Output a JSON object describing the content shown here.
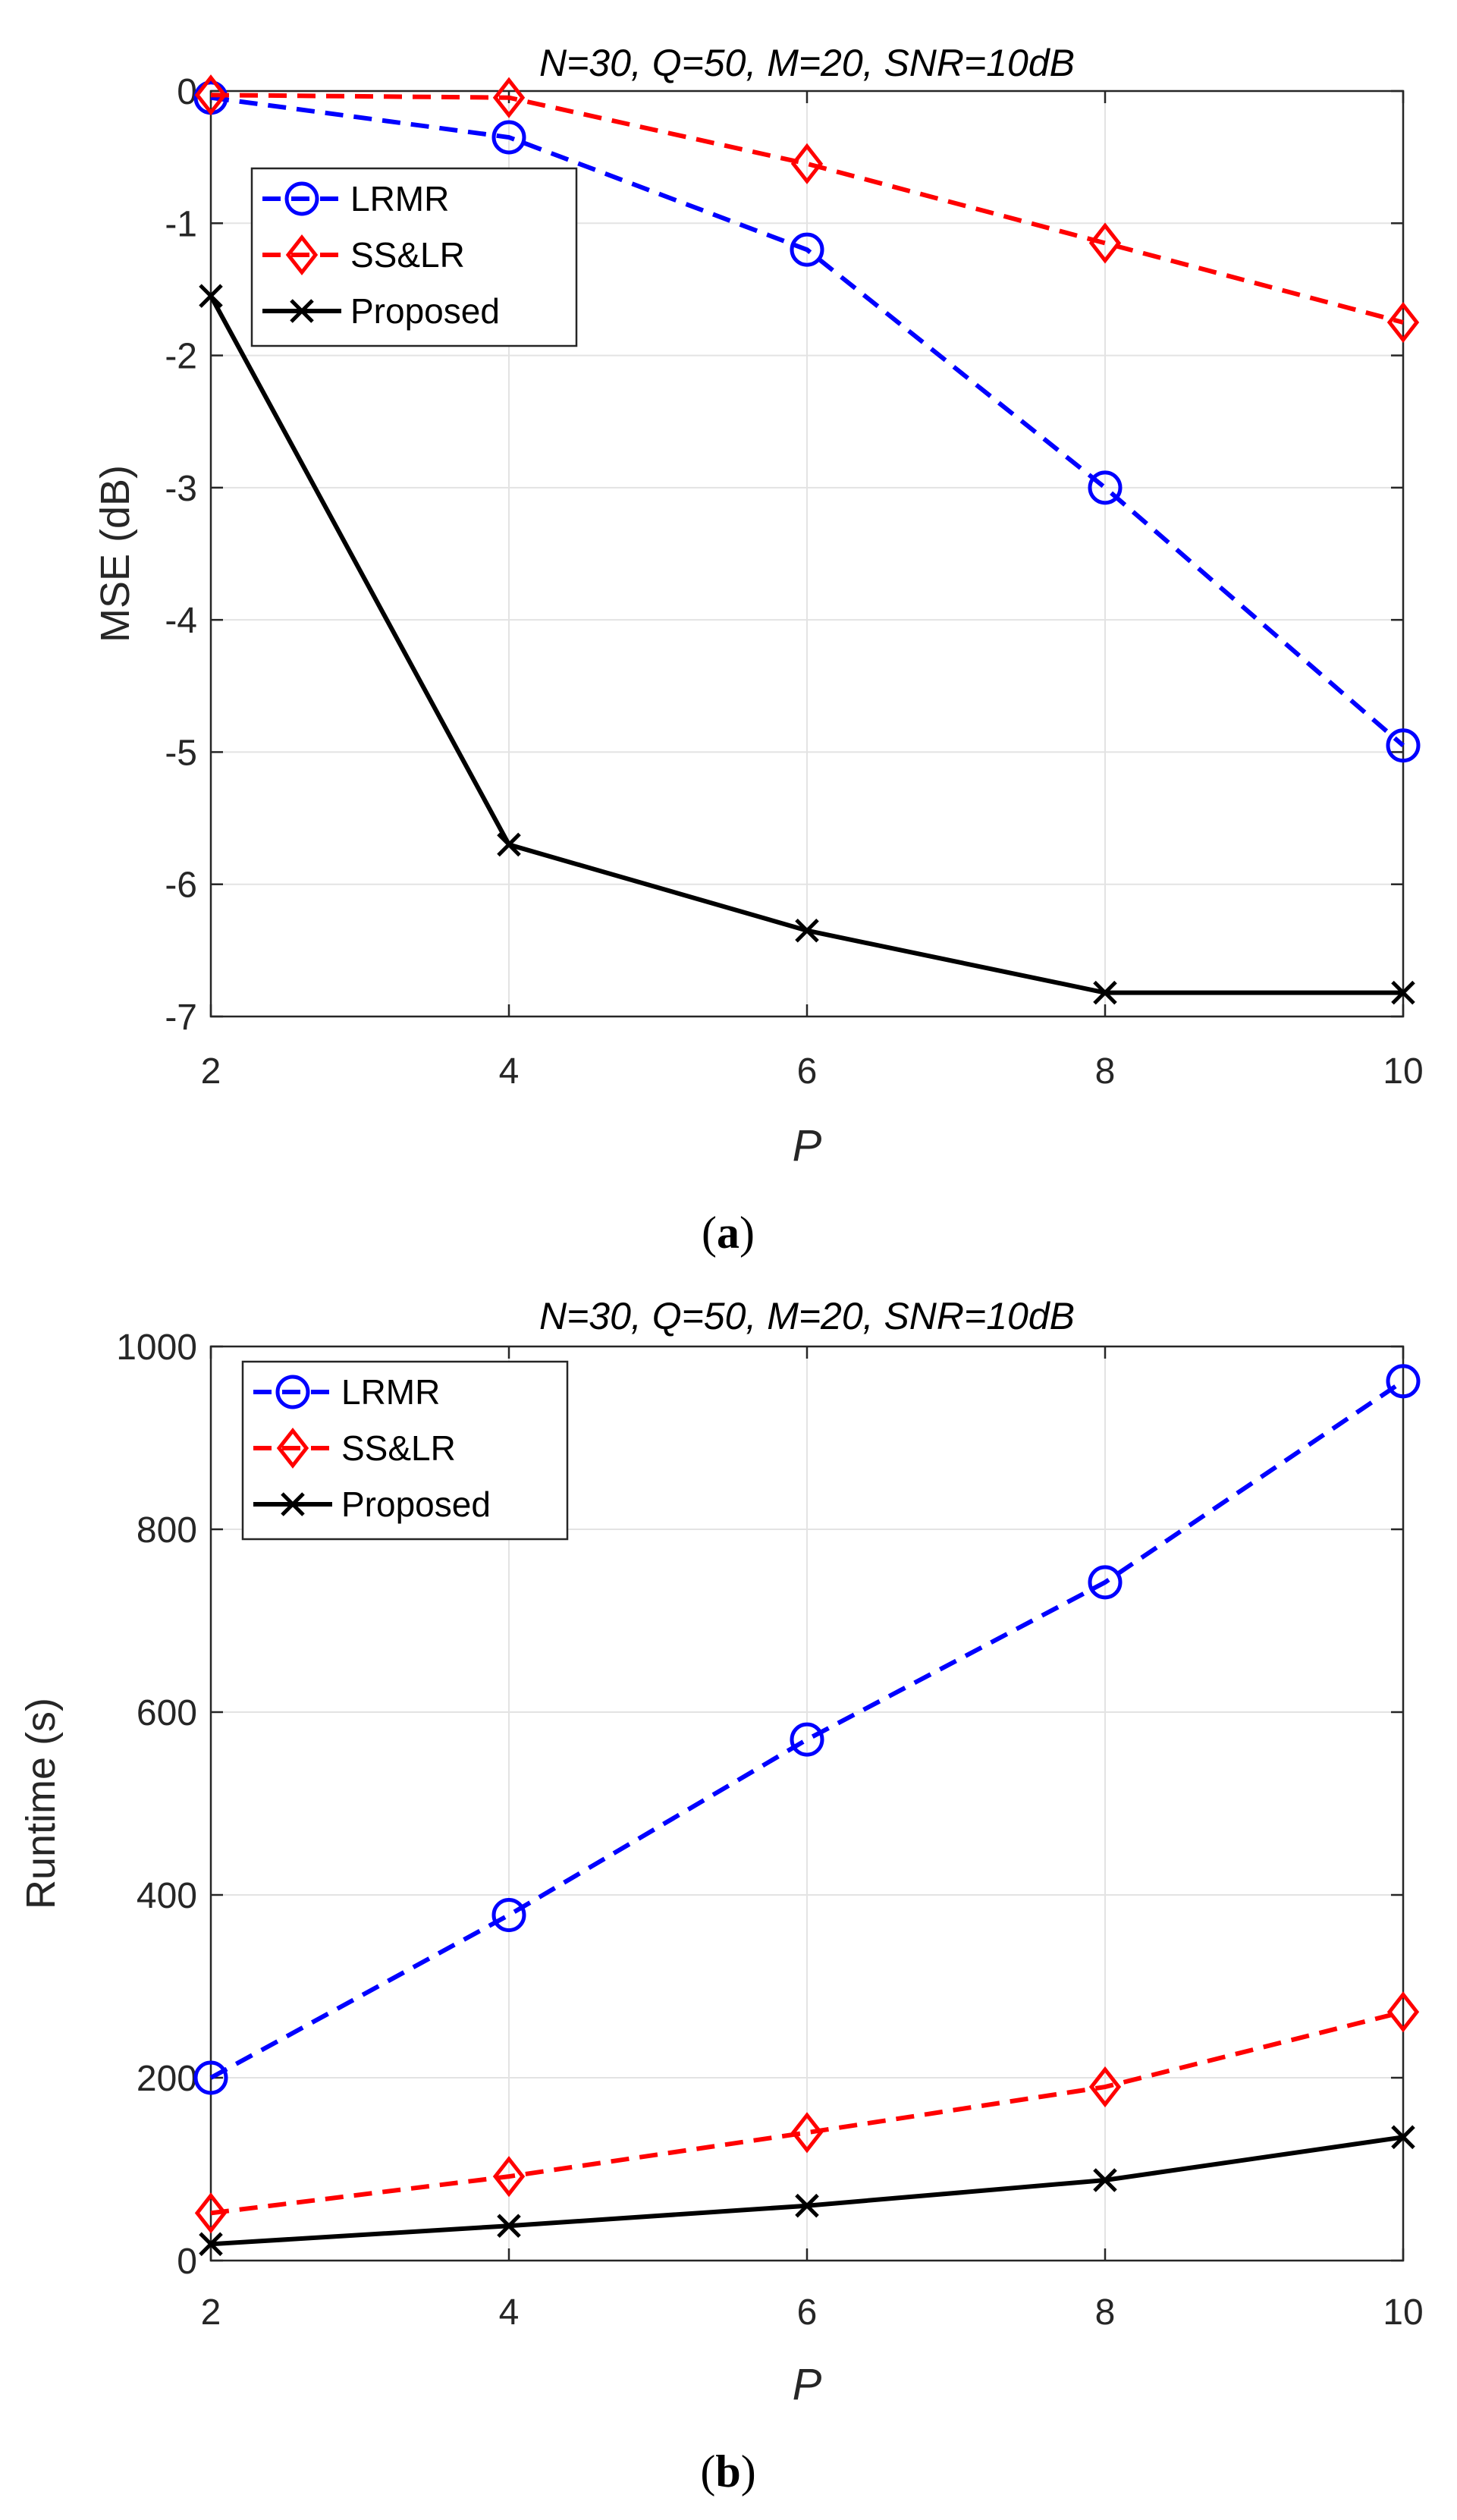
{
  "chart_data": [
    {
      "id": "a",
      "type": "line",
      "title": "N=30, Q=50, M=20, SNR=10dB",
      "xlabel": "P",
      "ylabel": "MSE (dB)",
      "caption_letter": "a",
      "x": [
        2,
        4,
        6,
        8,
        10
      ],
      "xlim": [
        2,
        10
      ],
      "ylim": [
        -7,
        0
      ],
      "xticks": [
        2,
        4,
        6,
        8,
        10
      ],
      "yticks": [
        0,
        -1,
        -2,
        -3,
        -4,
        -5,
        -6,
        -7
      ],
      "grid": true,
      "legend_position": "top-left",
      "series": [
        {
          "name": "LRMR",
          "color": "#0000ff",
          "dash": "dashed",
          "marker": "circle",
          "values": [
            -0.05,
            -0.35,
            -1.2,
            -3.0,
            -4.95
          ]
        },
        {
          "name": "SS&LR",
          "color": "#ff0000",
          "dash": "dashed",
          "marker": "diamond",
          "values": [
            -0.03,
            -0.05,
            -0.55,
            -1.15,
            -1.75
          ]
        },
        {
          "name": "Proposed",
          "color": "#000000",
          "dash": "solid",
          "marker": "x",
          "values": [
            -1.55,
            -5.7,
            -6.35,
            -6.82,
            -6.82
          ]
        }
      ]
    },
    {
      "id": "b",
      "type": "line",
      "title": "N=30, Q=50, M=20, SNR=10dB",
      "xlabel": "P",
      "ylabel": "Runtime (s)",
      "caption_letter": "b",
      "x": [
        2,
        4,
        6,
        8,
        10
      ],
      "xlim": [
        2,
        10
      ],
      "ylim": [
        0,
        1000
      ],
      "xticks": [
        2,
        4,
        6,
        8,
        10
      ],
      "yticks": [
        0,
        200,
        400,
        600,
        800,
        1000
      ],
      "grid": true,
      "legend_position": "top-left",
      "series": [
        {
          "name": "LRMR",
          "color": "#0000ff",
          "dash": "dashed",
          "marker": "circle",
          "values": [
            200,
            378,
            570,
            742,
            962
          ]
        },
        {
          "name": "SS&LR",
          "color": "#ff0000",
          "dash": "dashed",
          "marker": "diamond",
          "values": [
            52,
            92,
            140,
            190,
            272
          ]
        },
        {
          "name": "Proposed",
          "color": "#000000",
          "dash": "solid",
          "marker": "x",
          "values": [
            18,
            38,
            60,
            88,
            135
          ]
        }
      ]
    }
  ]
}
